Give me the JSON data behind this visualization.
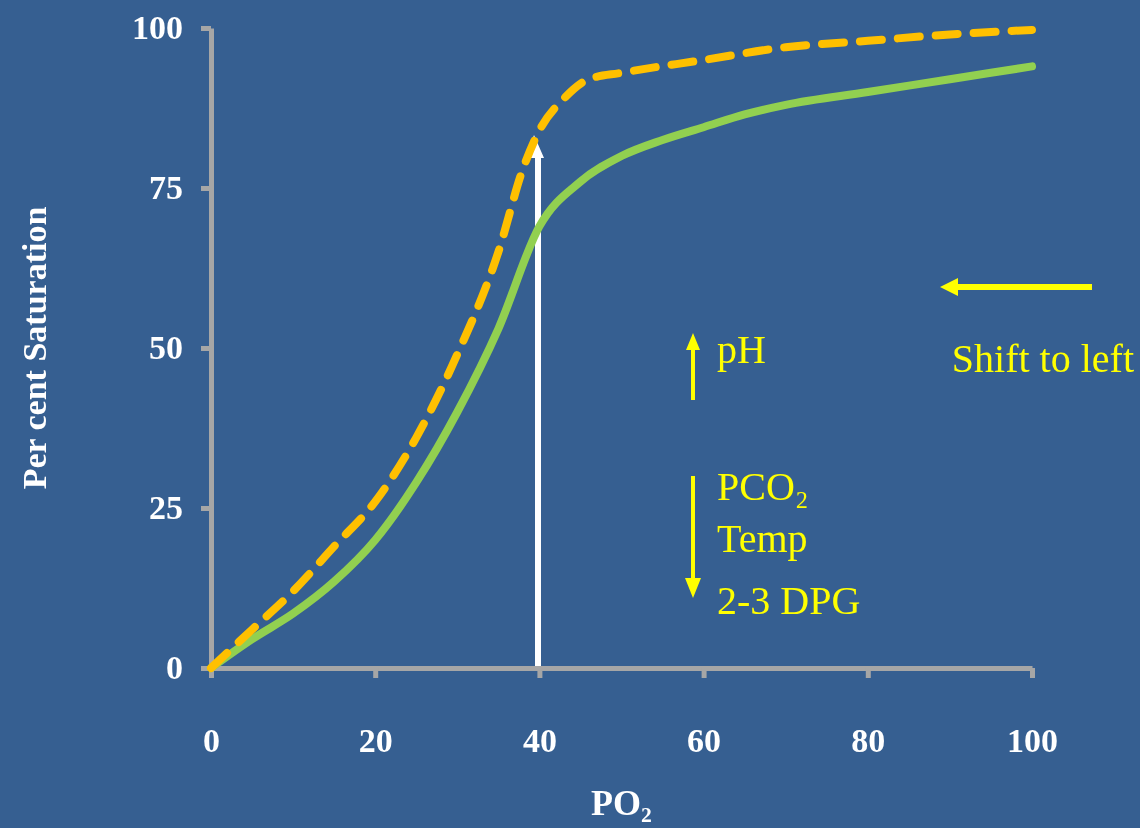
{
  "chart_data": {
    "type": "line",
    "xlabel": "PO₂",
    "ylabel": "Per cent Saturation",
    "xlim": [
      0,
      100
    ],
    "ylim": [
      0,
      100
    ],
    "xticks": [
      0,
      20,
      40,
      60,
      80,
      100
    ],
    "yticks": [
      0,
      25,
      50,
      75,
      100
    ],
    "annotations": [
      "pH",
      "PCO₂",
      "Temp",
      "2-3 DPG",
      "Shift to left"
    ],
    "series": [
      {
        "color": "#92d050",
        "line_style": "solid",
        "x": [
          0,
          5,
          10,
          15,
          20,
          25,
          30,
          35,
          40,
          45,
          50,
          55,
          60,
          65,
          70,
          80,
          90,
          100
        ],
        "values": [
          0,
          4.5,
          8.5,
          13.5,
          20,
          29,
          40,
          53,
          69,
          76,
          80,
          82.5,
          84.5,
          86.5,
          88,
          90,
          92,
          94
        ]
      },
      {
        "color": "#ffc000",
        "line_style": "dashed",
        "x": [
          0,
          5,
          10,
          15,
          20,
          25,
          30,
          35,
          38,
          40,
          43,
          46,
          50,
          60,
          70,
          80,
          90,
          100
        ],
        "values": [
          0,
          6,
          12,
          19,
          26,
          36,
          49,
          65,
          78,
          84,
          89,
          92,
          93,
          95,
          97,
          98,
          99,
          99.7
        ]
      }
    ]
  }
}
